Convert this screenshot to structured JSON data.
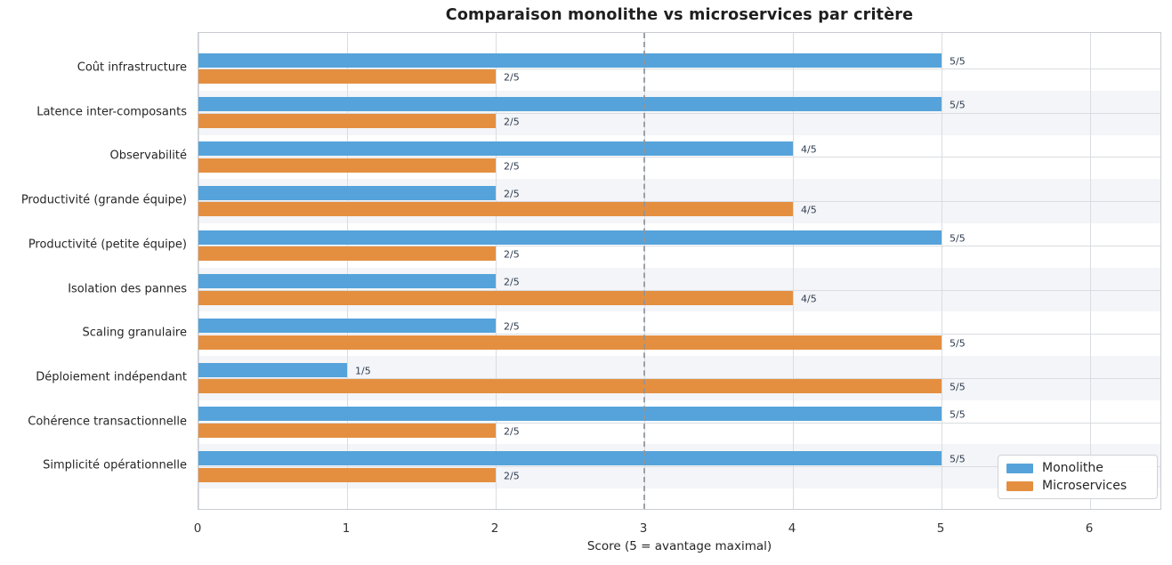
{
  "chart_data": {
    "type": "bar",
    "orientation": "horizontal",
    "title": "Comparaison monolithe vs microservices par critère",
    "xlabel": "Score (5 = avantage maximal)",
    "xlim": [
      0,
      6.5
    ],
    "xticks": [
      "0",
      "1",
      "2",
      "3",
      "4",
      "5",
      "6"
    ],
    "grid": "on",
    "legend_position": "lower right",
    "categories": [
      "Coût infrastructure",
      "Latence inter-composants",
      "Observabilité",
      "Productivité (grande équipe)",
      "Productivité (petite équipe)",
      "Isolation des pannes",
      "Scaling granulaire",
      "Déploiement indépendant",
      "Cohérence transactionnelle",
      "Simplicité opérationnelle"
    ],
    "series": [
      {
        "name": "Monolithe",
        "color": "#55a3da",
        "values": [
          5,
          5,
          4,
          2,
          5,
          2,
          2,
          1,
          5,
          5
        ],
        "labels": [
          "5/5",
          "5/5",
          "4/5",
          "2/5",
          "5/5",
          "2/5",
          "2/5",
          "1/5",
          "5/5",
          "5/5"
        ]
      },
      {
        "name": "Microservices",
        "color": "#e48f40",
        "values": [
          2,
          2,
          2,
          4,
          2,
          4,
          5,
          5,
          2,
          2
        ],
        "labels": [
          "2/5",
          "2/5",
          "2/5",
          "4/5",
          "2/5",
          "4/5",
          "5/5",
          "5/5",
          "2/5",
          "2/5"
        ]
      }
    ],
    "reference_line": {
      "x": 3,
      "style": "dashed",
      "color": "#8f959b"
    },
    "row_shading": {
      "alternate": true,
      "color": "#f4f5f8"
    }
  },
  "style": {
    "grid_color": "#d9dce0",
    "hgrid_color": "#d9dce0",
    "band_color": "#f4f5f8",
    "value_label_color": "#2e3c4e"
  }
}
